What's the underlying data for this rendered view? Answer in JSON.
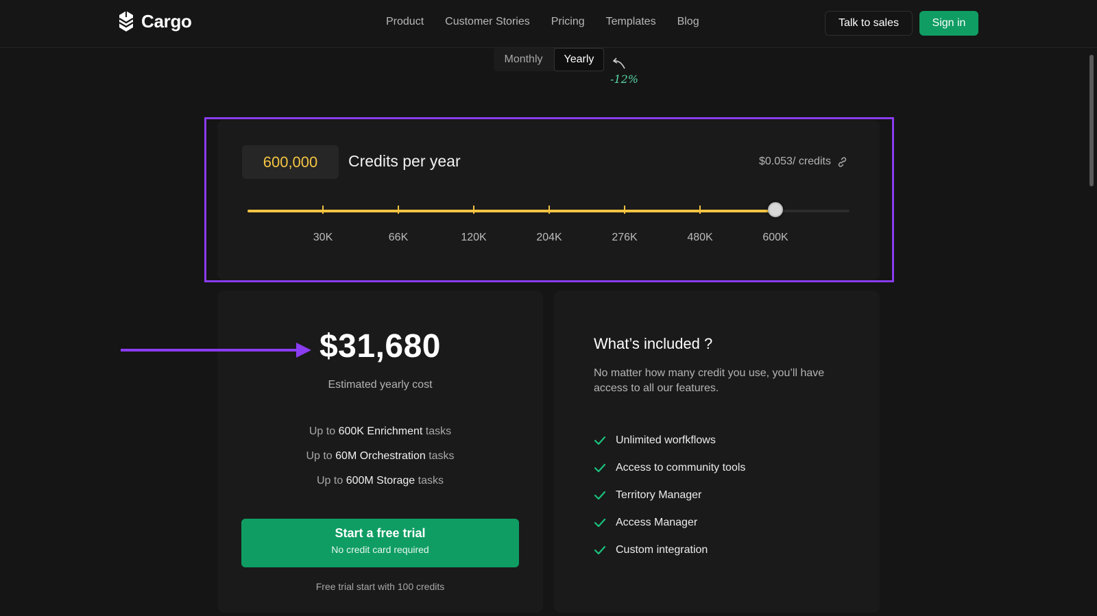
{
  "header": {
    "brand": "Cargo",
    "nav": [
      "Product",
      "Customer Stories",
      "Pricing",
      "Templates",
      "Blog"
    ],
    "talk_to_sales": "Talk to sales",
    "sign_in": "Sign in"
  },
  "billing": {
    "monthly": "Monthly",
    "yearly": "Yearly",
    "selected": "Yearly",
    "discount": "-12%"
  },
  "credits": {
    "value": "600,000",
    "label": "Credits per year",
    "rate": "$0.053/ credits",
    "slider": {
      "stops": [
        "30K",
        "66K",
        "120K",
        "204K",
        "276K",
        "480K",
        "600K"
      ],
      "selected_index": 6,
      "selected_label": "600K"
    }
  },
  "cost": {
    "price": "$31,680",
    "price_label": "Estimated yearly cost",
    "tasks": [
      {
        "prefix": "Up to",
        "amount": "600K Enrichment",
        "suffix": "tasks"
      },
      {
        "prefix": "Up to",
        "amount": "60M Orchestration",
        "suffix": "tasks"
      },
      {
        "prefix": "Up to",
        "amount": "600M Storage",
        "suffix": "tasks"
      }
    ],
    "trial_button": "Start a free trial",
    "trial_button_sub": "No credit card required",
    "trial_note": "Free trial start with 100 credits"
  },
  "included": {
    "title": "What’s included ?",
    "description": "No matter how many credit you use, you’ll have access to all our features.",
    "features": [
      "Unlimited worfkflows",
      "Access to community tools",
      "Territory Manager",
      "Access Manager",
      "Custom integration"
    ]
  },
  "colors": {
    "background": "#151515",
    "accent_green": "#0f9d63",
    "slider_yellow": "#f5c542",
    "highlight_purple": "#8a3cf0"
  }
}
